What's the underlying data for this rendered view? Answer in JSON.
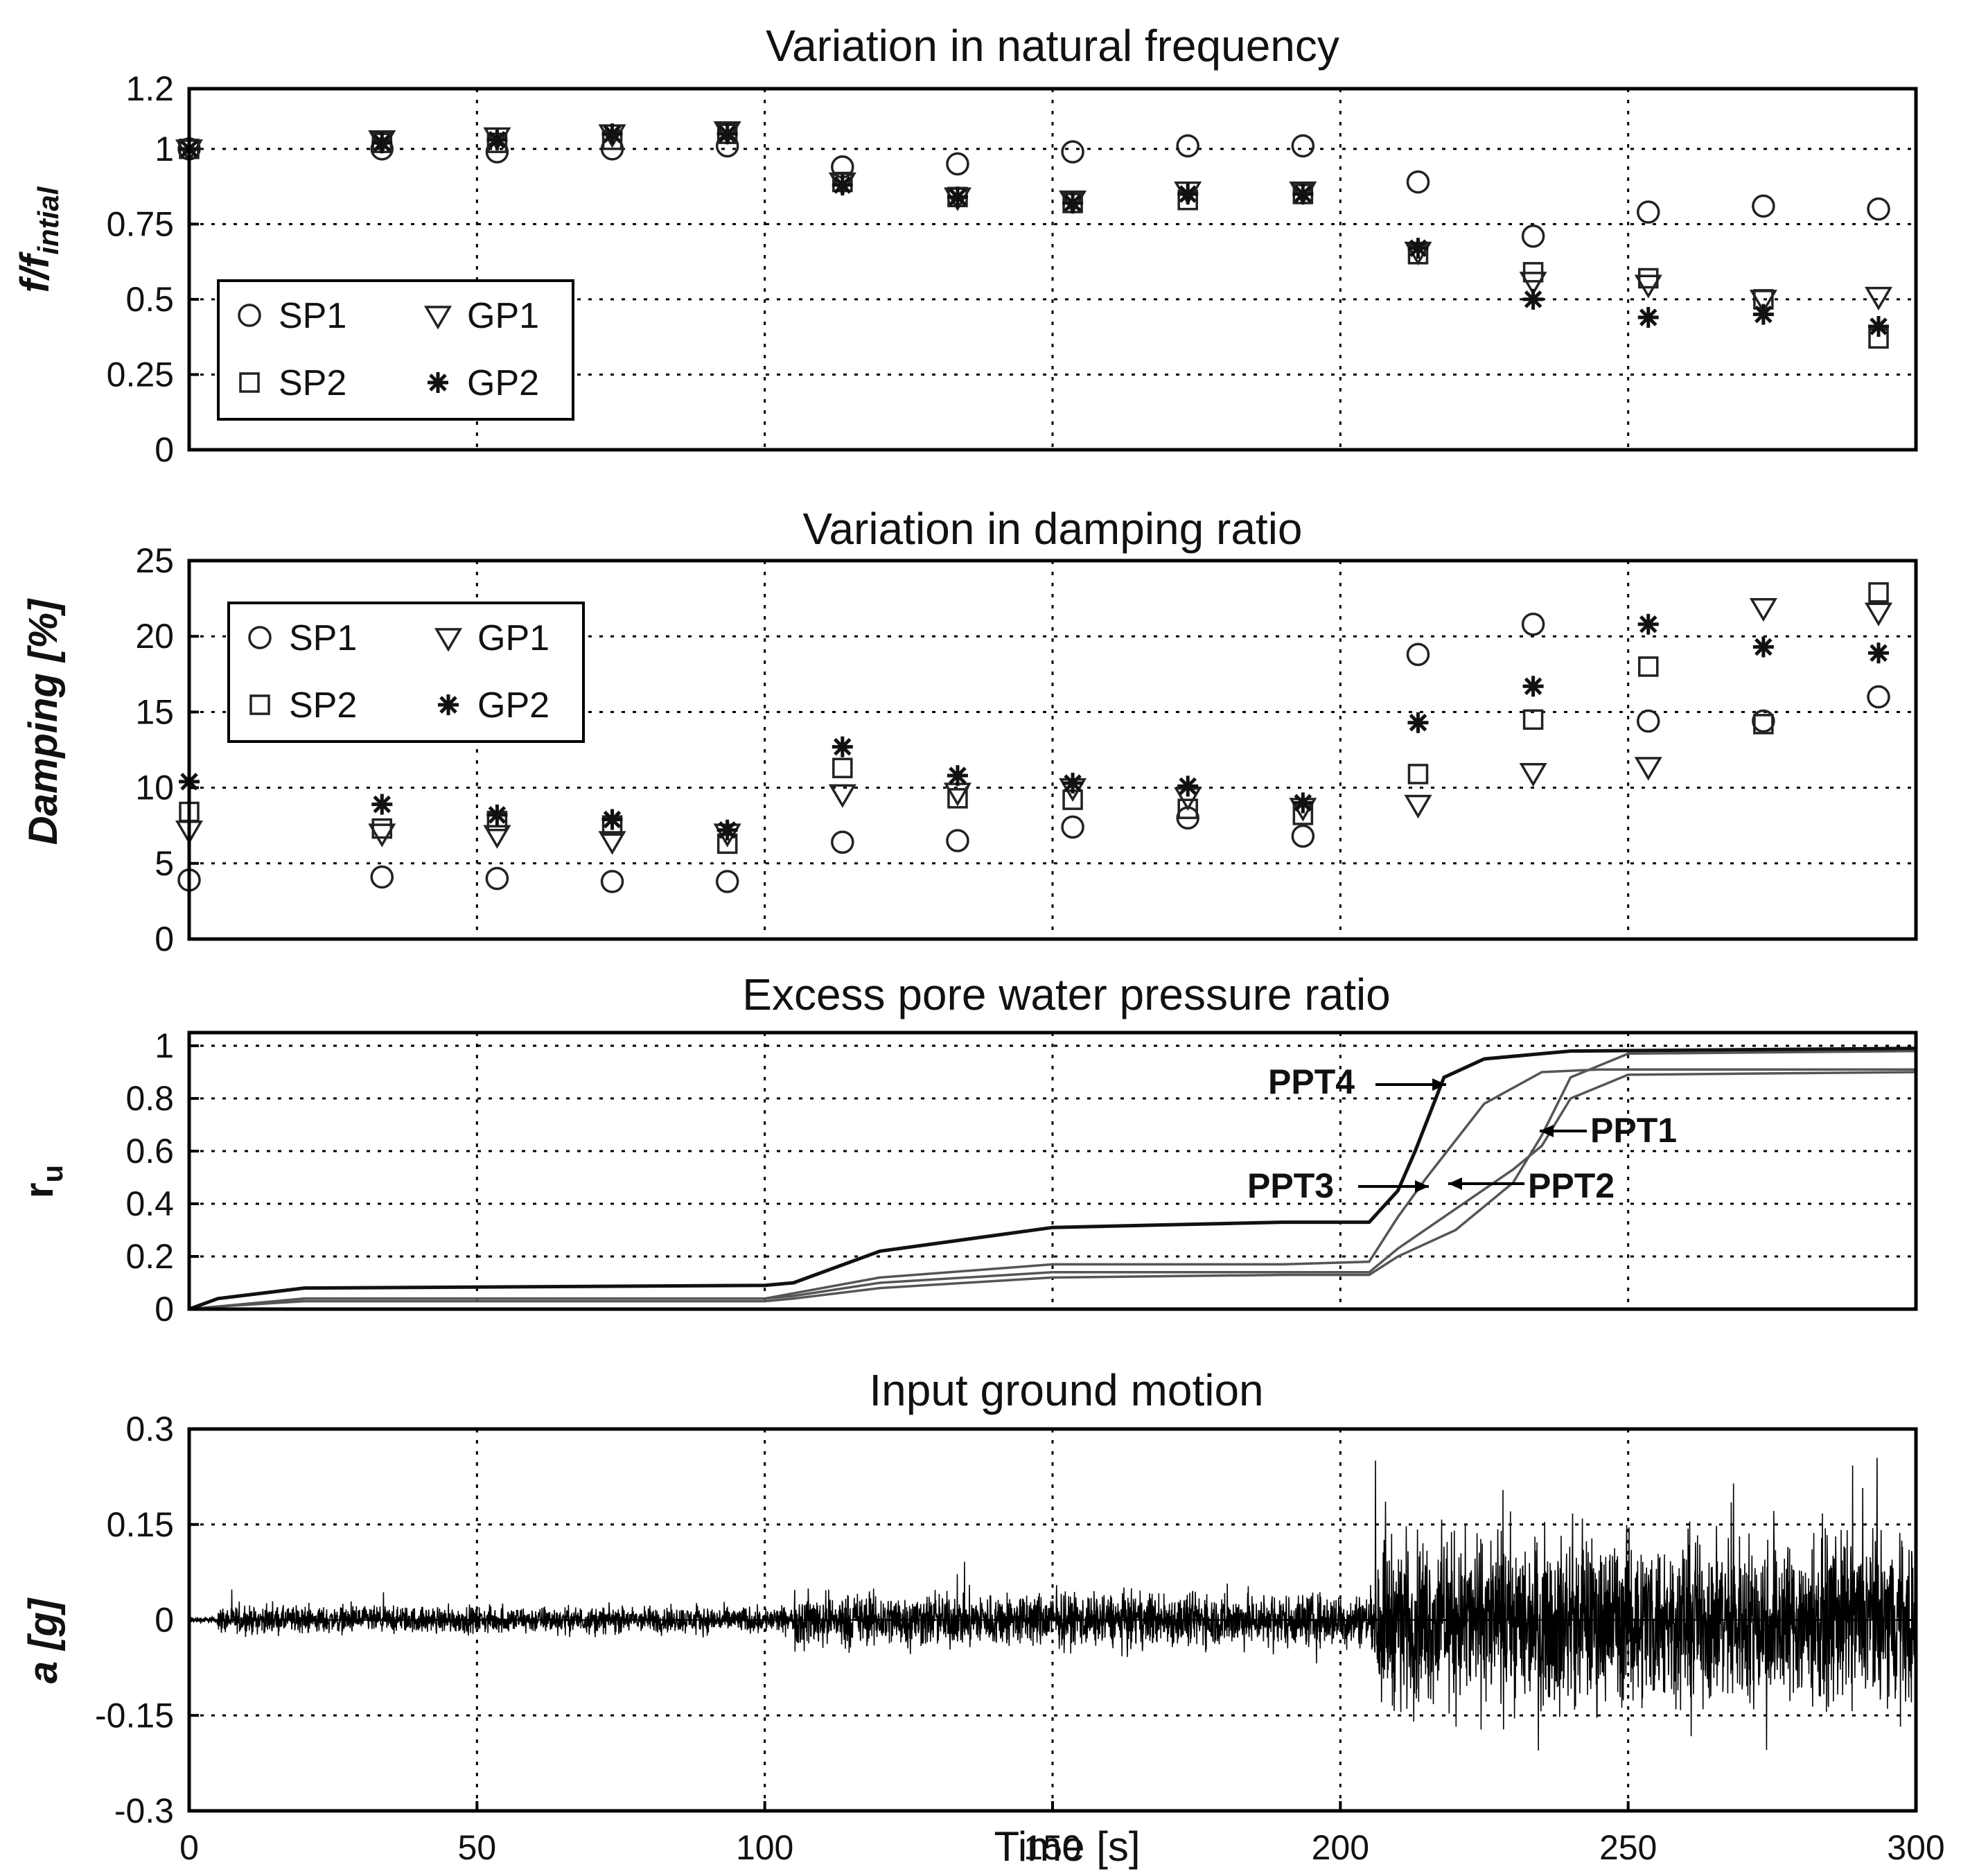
{
  "chart_data": [
    {
      "type": "scatter",
      "title": "Variation in natural frequency",
      "ylabel": "f/f",
      "ylabel_sub": "intial",
      "xlim": [
        0,
        300
      ],
      "ylim": [
        0,
        1.2
      ],
      "yticks": [
        "0",
        "0.25",
        "0.5",
        "0.75",
        "1",
        "1.2"
      ],
      "ytick_values": [
        0,
        0.25,
        0.5,
        0.75,
        1,
        1.2
      ],
      "grid": true,
      "legend_position": "lower-left",
      "x": [
        0,
        33.5,
        53.5,
        73.5,
        93.5,
        113.5,
        133.5,
        153.5,
        173.5,
        193.5,
        213.5,
        233.5,
        253.5,
        273.5,
        293.5
      ],
      "series": [
        {
          "name": "SP1",
          "marker": "circle",
          "values": [
            1.0,
            1.0,
            0.99,
            1.0,
            1.01,
            0.94,
            0.95,
            0.99,
            1.01,
            1.01,
            0.89,
            0.71,
            0.79,
            0.81,
            0.8
          ]
        },
        {
          "name": "SP2",
          "marker": "square",
          "values": [
            1.0,
            1.02,
            1.02,
            1.03,
            1.05,
            0.89,
            0.84,
            0.82,
            0.83,
            0.85,
            0.65,
            0.59,
            0.57,
            0.5,
            0.37
          ]
        },
        {
          "name": "GP1",
          "marker": "triangle",
          "values": [
            1.0,
            1.03,
            1.04,
            1.05,
            1.06,
            0.89,
            0.84,
            0.83,
            0.86,
            0.86,
            0.66,
            0.56,
            0.55,
            0.5,
            0.51
          ]
        },
        {
          "name": "GP2",
          "marker": "star",
          "values": [
            1.0,
            1.02,
            1.03,
            1.05,
            1.05,
            0.88,
            0.84,
            0.82,
            0.85,
            0.85,
            0.67,
            0.5,
            0.44,
            0.45,
            0.41
          ]
        }
      ]
    },
    {
      "type": "scatter",
      "title": "Variation in damping ratio",
      "ylabel": "Damping [%]",
      "xlim": [
        0,
        300
      ],
      "ylim": [
        0,
        25
      ],
      "yticks": [
        "0",
        "5",
        "10",
        "15",
        "20",
        "25"
      ],
      "ytick_values": [
        0,
        5,
        10,
        15,
        20,
        25
      ],
      "grid": true,
      "legend_position": "upper-left",
      "x": [
        0,
        33.5,
        53.5,
        73.5,
        93.5,
        113.5,
        133.5,
        153.5,
        173.5,
        193.5,
        213.5,
        233.5,
        253.5,
        273.5,
        293.5
      ],
      "series": [
        {
          "name": "SP1",
          "marker": "circle",
          "values": [
            3.9,
            4.1,
            4.0,
            3.8,
            3.8,
            6.4,
            6.5,
            7.4,
            8.0,
            6.8,
            18.8,
            20.8,
            14.4,
            14.4,
            16.0
          ]
        },
        {
          "name": "SP2",
          "marker": "square",
          "values": [
            8.4,
            7.3,
            7.8,
            7.5,
            6.3,
            11.3,
            9.3,
            9.2,
            8.6,
            8.2,
            10.9,
            14.5,
            18.0,
            14.2,
            22.9
          ]
        },
        {
          "name": "GP1",
          "marker": "triangle",
          "values": [
            7.2,
            7.0,
            6.9,
            6.5,
            7.0,
            9.6,
            9.7,
            10.0,
            9.4,
            8.7,
            8.9,
            11.0,
            11.4,
            21.9,
            21.6
          ]
        },
        {
          "name": "GP2",
          "marker": "star",
          "values": [
            10.4,
            8.9,
            8.2,
            7.9,
            7.2,
            12.7,
            10.8,
            10.3,
            10.1,
            9.0,
            14.3,
            16.7,
            20.8,
            19.3,
            18.9
          ]
        }
      ]
    },
    {
      "type": "line",
      "title": "Excess pore water pressure ratio",
      "ylabel": "r",
      "ylabel_sub": "u",
      "xlim": [
        0,
        300
      ],
      "ylim": [
        0,
        1.05
      ],
      "yticks": [
        "0",
        "0.2",
        "0.4",
        "0.6",
        "0.8",
        "1"
      ],
      "ytick_values": [
        0,
        0.2,
        0.4,
        0.6,
        0.8,
        1
      ],
      "grid": true,
      "series": [
        {
          "name": "PPT1",
          "x": [
            0,
            5,
            20,
            100,
            105,
            120,
            150,
            190,
            205,
            210,
            220,
            230,
            235,
            240,
            250,
            300
          ],
          "values": [
            0,
            0.01,
            0.03,
            0.03,
            0.04,
            0.08,
            0.12,
            0.13,
            0.13,
            0.2,
            0.3,
            0.48,
            0.66,
            0.88,
            0.97,
            0.98
          ]
        },
        {
          "name": "PPT2",
          "x": [
            0,
            5,
            20,
            100,
            105,
            120,
            150,
            190,
            205,
            210,
            220,
            230,
            235,
            240,
            250,
            300
          ],
          "values": [
            0,
            0.01,
            0.04,
            0.04,
            0.05,
            0.1,
            0.14,
            0.14,
            0.14,
            0.23,
            0.38,
            0.53,
            0.62,
            0.8,
            0.89,
            0.9
          ]
        },
        {
          "name": "PPT3",
          "x": [
            0,
            5,
            20,
            100,
            105,
            120,
            150,
            190,
            205,
            210,
            215,
            225,
            235,
            245,
            300
          ],
          "values": [
            0,
            0.01,
            0.04,
            0.04,
            0.06,
            0.12,
            0.17,
            0.17,
            0.18,
            0.35,
            0.5,
            0.78,
            0.9,
            0.91,
            0.91
          ]
        },
        {
          "name": "PPT4",
          "x": [
            0,
            5,
            20,
            100,
            105,
            120,
            150,
            190,
            205,
            210,
            213,
            218,
            225,
            240,
            300
          ],
          "values": [
            0,
            0.04,
            0.08,
            0.09,
            0.1,
            0.22,
            0.31,
            0.33,
            0.33,
            0.45,
            0.6,
            0.88,
            0.95,
            0.98,
            0.99
          ]
        }
      ],
      "annotations": [
        {
          "text": "PPT4",
          "x": 217,
          "y": 0.87
        },
        {
          "text": "PPT1",
          "x": 235,
          "y": 0.68
        },
        {
          "text": "PPT3",
          "x": 214,
          "y": 0.47
        },
        {
          "text": "PPT2",
          "x": 218,
          "y": 0.47
        }
      ]
    },
    {
      "type": "line",
      "title": "Input ground motion",
      "ylabel": "a [g]",
      "xlabel": "Time [s]",
      "xlim": [
        0,
        300
      ],
      "ylim": [
        -0.3,
        0.3
      ],
      "yticks": [
        "-0.3",
        "-0.15",
        "0",
        "0.15",
        "0.3"
      ],
      "ytick_values": [
        -0.3,
        -0.15,
        0,
        0.15,
        0.3
      ],
      "xticks": [
        "0",
        "50",
        "100",
        "150",
        "200",
        "250",
        "300"
      ],
      "xtick_values": [
        0,
        50,
        100,
        150,
        200,
        250,
        300
      ],
      "grid": true,
      "envelope": [
        {
          "from": 0,
          "to": 5,
          "peak": 0.01
        },
        {
          "from": 5,
          "to": 105,
          "peak": 0.04
        },
        {
          "from": 105,
          "to": 206,
          "peak": 0.08
        },
        {
          "from": 206,
          "to": 300,
          "peak": 0.25
        }
      ]
    }
  ]
}
